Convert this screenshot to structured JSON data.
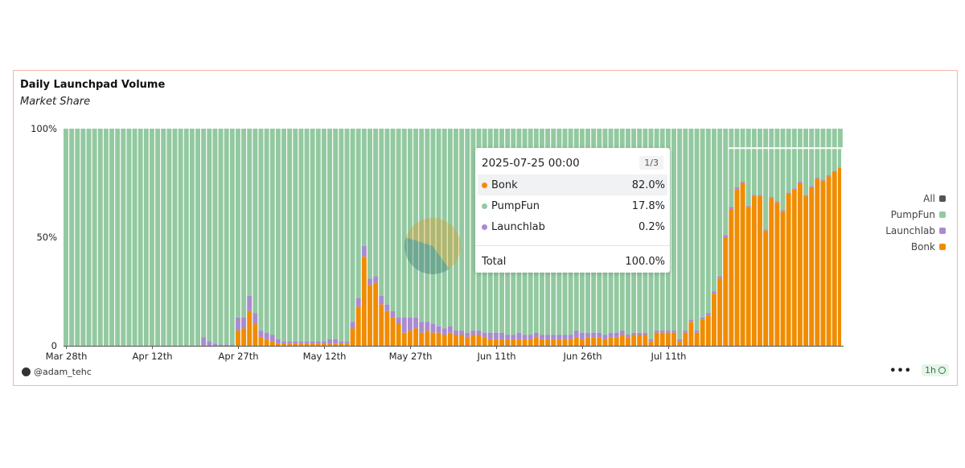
{
  "card": {
    "title": "Daily Launchpad Volume",
    "subtitle": "Market Share"
  },
  "legend": [
    {
      "label": "All",
      "color": "#555555"
    },
    {
      "label": "PumpFun",
      "color": "#93c9a0"
    },
    {
      "label": "Launchlab",
      "color": "#a98bd0"
    },
    {
      "label": "Bonk",
      "color": "#f08c00"
    }
  ],
  "footer": {
    "credit": "@adam_tehc",
    "more": "•••",
    "refresh_interval": "1h"
  },
  "tooltip": {
    "date": "2025-07-25 00:00",
    "page": "1/3",
    "rows": [
      {
        "label": "Bonk",
        "value": "82.0%",
        "color": "#f08c00"
      },
      {
        "label": "PumpFun",
        "value": "17.8%",
        "color": "#93c9a0"
      },
      {
        "label": "Launchlab",
        "value": "0.2%",
        "color": "#a98bd0"
      }
    ],
    "total_label": "Total",
    "total_value": "100.0%"
  },
  "chart_data": {
    "type": "bar",
    "stacked": true,
    "x_start": "2025-03-28",
    "x_end": "2025-07-25",
    "x_ticks": [
      "Mar 28th",
      "Apr 12th",
      "Apr 27th",
      "May 12th",
      "May 27th",
      "Jun 11th",
      "Jun 26th",
      "Jul 11th"
    ],
    "y_ticks": [
      "0",
      "50%",
      "100%"
    ],
    "ylim": [
      0,
      100
    ],
    "series": [
      {
        "name": "Bonk",
        "color": "#f08c00",
        "values": [
          0,
          0,
          0,
          0,
          0,
          0,
          0,
          0,
          0,
          0,
          0,
          0,
          0,
          0,
          0,
          0,
          0,
          0,
          0,
          0,
          0,
          0,
          0,
          0,
          0,
          0,
          0,
          0,
          0,
          0,
          7,
          8,
          16,
          10,
          4,
          3,
          2,
          1,
          1,
          1,
          1,
          1,
          1,
          1,
          1,
          1,
          1,
          1,
          1,
          1,
          8,
          18,
          41,
          28,
          29,
          19,
          16,
          13,
          10,
          6,
          7,
          8,
          6,
          7,
          6,
          6,
          5,
          6,
          5,
          5,
          4,
          5,
          5,
          4,
          3,
          3,
          3,
          3,
          3,
          3,
          3,
          3,
          4,
          3,
          3,
          3,
          3,
          3,
          3,
          4,
          3,
          4,
          4,
          4,
          3,
          4,
          4,
          5,
          4,
          5,
          5,
          5,
          2,
          6,
          6,
          6,
          6,
          2,
          6,
          11,
          6,
          12,
          14,
          24,
          31,
          50,
          63,
          72,
          75,
          64,
          69,
          69,
          53,
          68,
          66,
          62,
          70,
          72,
          75,
          69,
          73,
          77,
          76,
          78,
          80,
          82
        ]
      },
      {
        "name": "Launchlab",
        "color": "#a98bd0",
        "values": [
          0,
          0,
          0,
          0,
          0,
          0,
          0,
          0,
          0,
          0,
          0,
          0,
          0,
          0,
          0,
          0,
          0,
          0,
          0,
          0,
          0,
          0,
          0,
          0,
          4,
          2,
          1,
          0.5,
          0.5,
          0.5,
          6,
          5,
          7,
          5,
          3,
          3,
          3,
          2,
          1,
          1,
          1,
          1,
          1,
          1,
          1,
          1,
          2,
          2,
          1,
          1,
          3,
          4,
          5,
          3,
          3,
          4,
          3,
          3,
          3,
          7,
          6,
          5,
          5,
          4,
          4,
          3,
          3,
          3,
          2,
          2,
          2,
          2,
          2,
          2,
          3,
          3,
          3,
          2,
          2,
          3,
          2,
          2,
          2,
          2,
          2,
          2,
          2,
          2,
          2,
          3,
          3,
          2,
          2,
          2,
          2,
          2,
          2,
          2,
          1,
          1,
          1,
          1,
          1,
          1,
          1,
          1,
          1,
          1,
          1,
          1,
          1,
          1,
          1,
          1,
          1,
          1,
          1,
          1,
          0.5,
          0.5,
          0.5,
          0.5,
          0.5,
          0.5,
          0.5,
          0.5,
          0.5,
          0.5,
          0.5,
          0.5,
          0.5,
          0.5,
          0.5,
          0.5,
          0.5,
          0.2
        ]
      }
    ],
    "remainder_series": {
      "name": "PumpFun",
      "color": "#93c9a0"
    },
    "pie": {
      "slices": [
        {
          "name": "Bonk",
          "value": 60
        },
        {
          "name": "PumpFun",
          "value": 40
        }
      ]
    },
    "colors": {
      "Bonk": "#f08c00",
      "PumpFun": "#93c9a0",
      "Launchlab": "#a98bd0"
    }
  }
}
